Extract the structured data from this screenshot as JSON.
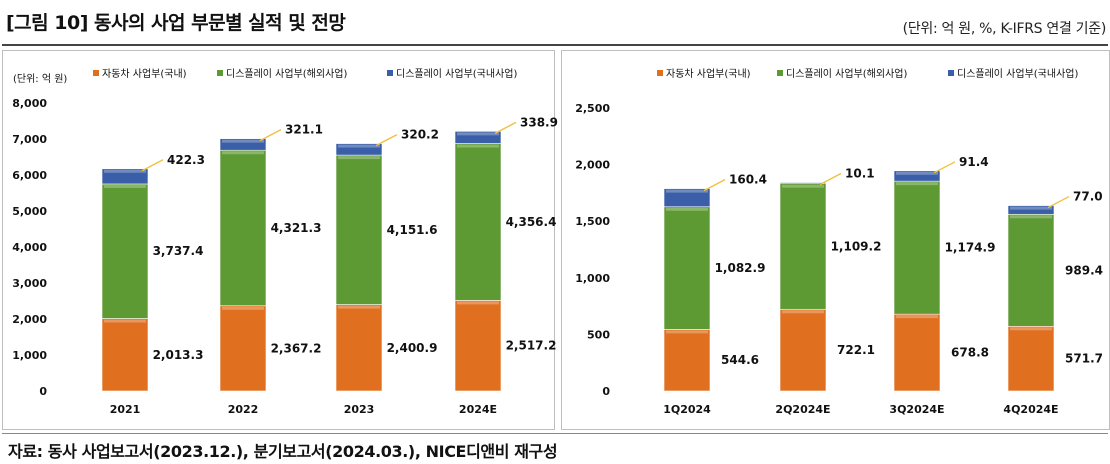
{
  "header": {
    "title": "[그림 10] 동사의 사업 부문별 실적 및 전망",
    "unit_note": "(단위: 억 원, %, K-IFRS 연결 기준)"
  },
  "footer": {
    "source": "자료: 동사 사업보고서(2023.12.), 분기보고서(2024.03.), NICE디앤비 재구성"
  },
  "colors": {
    "auto": "#e07020",
    "display_overseas": "#5e9a33",
    "display_domestic": "#3a5fa8",
    "leader": "#f0c040"
  },
  "chart_data": [
    {
      "type": "bar",
      "stacked": true,
      "unit_label": "(단위: 억 원)",
      "categories": [
        "2021",
        "2022",
        "2023",
        "2024E"
      ],
      "ylim": [
        0,
        8000
      ],
      "yticks": [
        "0",
        "1,000",
        "2,000",
        "3,000",
        "4,000",
        "5,000",
        "6,000",
        "7,000",
        "8,000"
      ],
      "legend_position": "top",
      "series": [
        {
          "name": "자동차 사업부(국내)",
          "values": [
            2013.3,
            2367.2,
            2400.9,
            2517.2
          ],
          "labels": [
            "2,013.3",
            "2,367.2",
            "2,400.9",
            "2,517.2"
          ]
        },
        {
          "name": "디스플레이 사업부(해외사업)",
          "values": [
            3737.4,
            4321.3,
            4151.6,
            4356.4
          ],
          "labels": [
            "3,737.4",
            "4,321.3",
            "4,151.6",
            "4,356.4"
          ]
        },
        {
          "name": "디스플레이 사업부(국내사업)",
          "values": [
            422.3,
            321.1,
            320.2,
            338.9
          ],
          "labels": [
            "422.3",
            "321.1",
            "320.2",
            "338.9"
          ]
        }
      ]
    },
    {
      "type": "bar",
      "stacked": true,
      "categories": [
        "1Q2024",
        "2Q2024E",
        "3Q2024E",
        "4Q2024E"
      ],
      "ylim": [
        0,
        2500
      ],
      "yticks": [
        "0",
        "500",
        "1,000",
        "1,500",
        "2,000",
        "2,500"
      ],
      "legend_position": "top",
      "series": [
        {
          "name": "자동차 사업부(국내)",
          "values": [
            544.6,
            722.1,
            678.8,
            571.7
          ],
          "labels": [
            "544.6",
            "722.1",
            "678.8",
            "571.7"
          ]
        },
        {
          "name": "디스플레이 사업부(해외사업)",
          "values": [
            1082.9,
            1109.2,
            1174.9,
            989.4
          ],
          "labels": [
            "1,082.9",
            "1,109.2",
            "1,174.9",
            "989.4"
          ]
        },
        {
          "name": "디스플레이 사업부(국내사업)",
          "values": [
            160.4,
            10.1,
            91.4,
            77.0
          ],
          "labels": [
            "160.4",
            "10.1",
            "91.4",
            "77.0"
          ]
        }
      ]
    }
  ]
}
